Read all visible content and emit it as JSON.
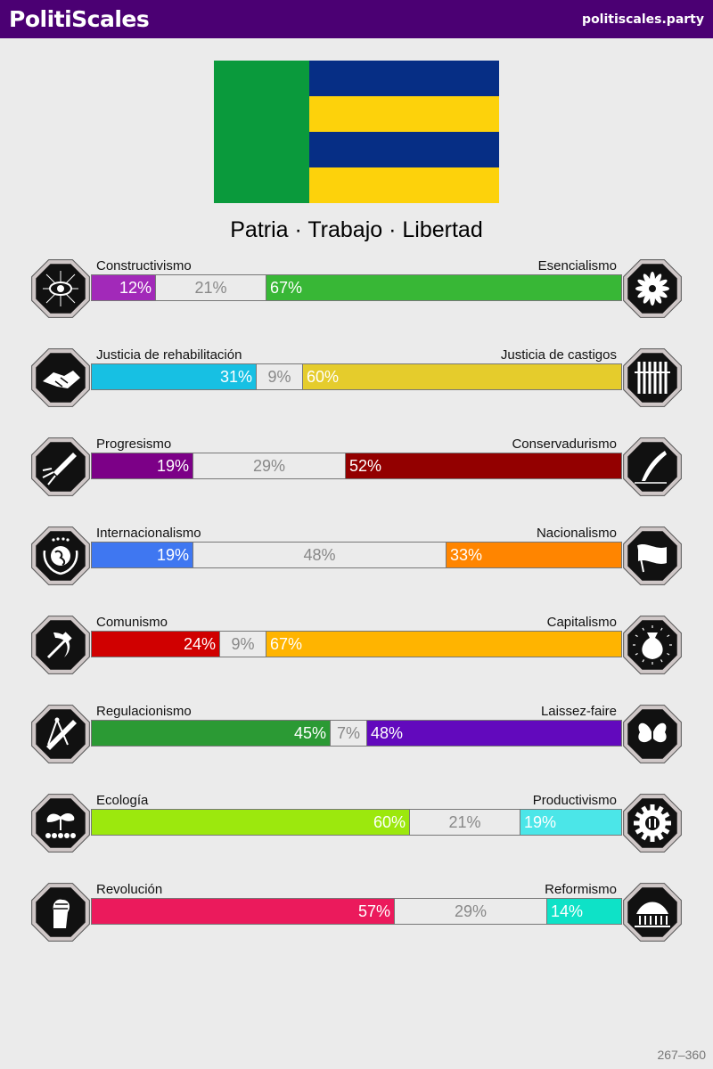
{
  "header": {
    "title": "PolitiScales",
    "site": "politiscales.party"
  },
  "flag": {
    "left_color": "#0a9a3c",
    "stripes": [
      "#062e85",
      "#fdd20b",
      "#062e85",
      "#fdd20b"
    ]
  },
  "motto": "Patria · Trabajo · Libertad",
  "axes": [
    {
      "left_label": "Constructivismo",
      "right_label": "Esencialismo",
      "left_pct": 12,
      "center_pct": 21,
      "right_pct": 67,
      "left_text": "12%",
      "center_text": "21%",
      "right_text": "67%",
      "left_color": "#a229b9",
      "right_color": "#38b736",
      "left_icon": "eye-mesh-icon",
      "right_icon": "flower-icon"
    },
    {
      "left_label": "Justicia de rehabilitación",
      "right_label": "Justicia de castigos",
      "left_pct": 31,
      "center_pct": 9,
      "right_pct": 60,
      "left_text": "31%",
      "center_text": "9%",
      "right_text": "60%",
      "left_color": "#17c0e3",
      "right_color": "#e5cc2c",
      "left_icon": "handshake-icon",
      "right_icon": "prison-bars-icon"
    },
    {
      "left_label": "Progresismo",
      "right_label": "Conservadurismo",
      "left_pct": 19,
      "center_pct": 29,
      "right_pct": 52,
      "left_text": "19%",
      "center_text": "29%",
      "right_text": "52%",
      "left_color": "#7c0087",
      "right_color": "#930000",
      "left_icon": "rocket-icon",
      "right_icon": "quill-pen-icon"
    },
    {
      "left_label": "Internacionalismo",
      "right_label": "Nacionalismo",
      "left_pct": 19,
      "center_pct": 48,
      "right_pct": 33,
      "left_text": "19%",
      "center_text": "48%",
      "right_text": "33%",
      "left_color": "#3f77f1",
      "right_color": "#ff8500",
      "left_icon": "globe-wreath-icon",
      "right_icon": "flag-icon"
    },
    {
      "left_label": "Comunismo",
      "right_label": "Capitalismo",
      "left_pct": 24,
      "center_pct": 9,
      "right_pct": 67,
      "left_text": "24%",
      "center_text": "9%",
      "right_text": "67%",
      "left_color": "#d00000",
      "right_color": "#ffb400",
      "left_icon": "hammer-sickle-icon",
      "right_icon": "money-bag-icon"
    },
    {
      "left_label": "Regulacionismo",
      "right_label": "Laissez-faire",
      "left_pct": 45,
      "center_pct": 7,
      "right_pct": 48,
      "left_text": "45%",
      "center_text": "7%",
      "right_text": "48%",
      "left_color": "#2b9a34",
      "right_color": "#6209bd",
      "left_icon": "ruler-compass-icon",
      "right_icon": "butterfly-icon"
    },
    {
      "left_label": "Ecología",
      "right_label": "Productivismo",
      "left_pct": 60,
      "center_pct": 21,
      "right_pct": 19,
      "left_text": "60%",
      "center_text": "21%",
      "right_text": "19%",
      "left_color": "#9ce80d",
      "right_color": "#4be6e8",
      "left_icon": "sprout-icon",
      "right_icon": "gear-icon"
    },
    {
      "left_label": "Revolución",
      "right_label": "Reformismo",
      "left_pct": 57,
      "center_pct": 29,
      "right_pct": 14,
      "left_text": "57%",
      "center_text": "29%",
      "right_text": "14%",
      "left_color": "#eb1a5c",
      "right_color": "#0ee2c7",
      "left_icon": "raised-fist-icon",
      "right_icon": "parliament-icon"
    }
  ],
  "footer": "267–360"
}
